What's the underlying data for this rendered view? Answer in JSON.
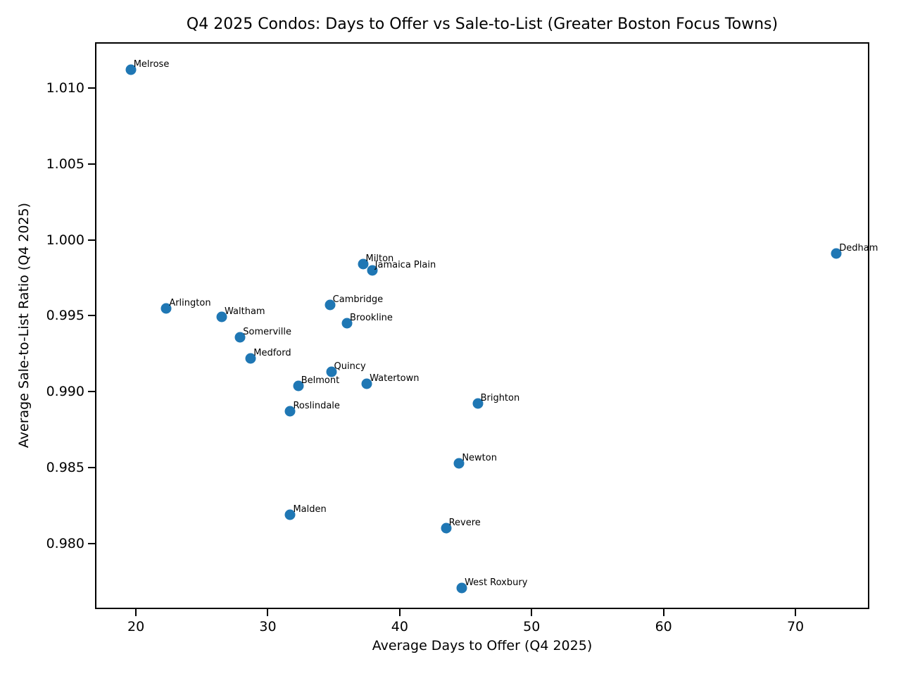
{
  "chart_data": {
    "type": "scatter",
    "title": "Q4 2025 Condos: Days to Offer vs Sale-to-List (Greater Boston Focus Towns)",
    "xlabel": "Average Days to Offer (Q4 2025)",
    "ylabel": "Average Sale-to-List Ratio (Q4 2025)",
    "xlim": [
      16.9,
      75.6
    ],
    "ylim": [
      0.9757,
      1.013
    ],
    "x_ticks": [
      20,
      30,
      40,
      50,
      60,
      70
    ],
    "y_ticks": [
      1.01,
      1.005,
      1.0,
      0.995,
      0.99,
      0.985,
      0.98
    ],
    "y_tick_labels": [
      "1.010",
      "1.005",
      "1.000",
      "0.995",
      "0.990",
      "0.985",
      "0.980"
    ],
    "grid": false,
    "legend": "none",
    "marker_color": "#1f77b4",
    "points": [
      {
        "label": "Melrose",
        "x": 19.5,
        "y": 1.0113
      },
      {
        "label": "Arlington",
        "x": 22.2,
        "y": 0.9956
      },
      {
        "label": "Waltham",
        "x": 26.4,
        "y": 0.995
      },
      {
        "label": "Somerville",
        "x": 27.8,
        "y": 0.9937
      },
      {
        "label": "Medford",
        "x": 28.6,
        "y": 0.9923
      },
      {
        "label": "Cambridge",
        "x": 34.6,
        "y": 0.9958
      },
      {
        "label": "Brookline",
        "x": 35.9,
        "y": 0.9946
      },
      {
        "label": "Quincy",
        "x": 34.7,
        "y": 0.9914
      },
      {
        "label": "Belmont",
        "x": 32.2,
        "y": 0.9905
      },
      {
        "label": "Watertown",
        "x": 37.4,
        "y": 0.9906
      },
      {
        "label": "Roslindale",
        "x": 31.6,
        "y": 0.9888
      },
      {
        "label": "Milton",
        "x": 37.1,
        "y": 0.9985
      },
      {
        "label": "Jamaica Plain",
        "x": 37.8,
        "y": 0.9981
      },
      {
        "label": "Brighton",
        "x": 45.8,
        "y": 0.9893
      },
      {
        "label": "Newton",
        "x": 44.4,
        "y": 0.9854
      },
      {
        "label": "Malden",
        "x": 31.6,
        "y": 0.982
      },
      {
        "label": "Revere",
        "x": 43.4,
        "y": 0.9811
      },
      {
        "label": "West Roxbury",
        "x": 44.6,
        "y": 0.9772
      },
      {
        "label": "Dedham",
        "x": 73.0,
        "y": 0.9992
      }
    ]
  }
}
